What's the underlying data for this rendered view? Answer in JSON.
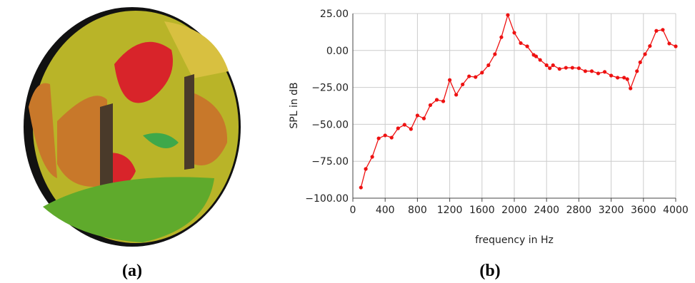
{
  "chart_data": {
    "type": "line",
    "xlabel": "frequency in Hz",
    "ylabel": "SPL in dB",
    "x": [
      100,
      160,
      240,
      320,
      400,
      480,
      560,
      640,
      720,
      800,
      880,
      960,
      1040,
      1120,
      1200,
      1280,
      1360,
      1440,
      1520,
      1600,
      1680,
      1760,
      1840,
      1920,
      2000,
      2080,
      2160,
      2240,
      2270,
      2320,
      2400,
      2440,
      2480,
      2560,
      2640,
      2720,
      2800,
      2880,
      2960,
      3040,
      3120,
      3200,
      3280,
      3360,
      3400,
      3440,
      3520,
      3560,
      3620,
      3680,
      3760,
      3840,
      3920,
      4000
    ],
    "series": [
      {
        "color": "#ee1111",
        "values": [
          -92.8,
          -80.2,
          -72,
          -59.5,
          -57.5,
          -59,
          -52.7,
          -50.3,
          -53.2,
          -44,
          -46,
          -37,
          -33.4,
          -34.4,
          -20,
          -30,
          -23,
          -17.5,
          -18,
          -15,
          -10,
          -2.5,
          9,
          24,
          12,
          5,
          2.8,
          -3,
          -4,
          -6.4,
          -10,
          -12,
          -10,
          -12.5,
          -11.7,
          -11.7,
          -12,
          -14,
          -14,
          -15.5,
          -14.5,
          -17,
          -18.4,
          -18.4,
          -19.4,
          -25.7,
          -14,
          -8,
          -2.5,
          3,
          13.3,
          14,
          4.7,
          2.8
        ]
      }
    ],
    "xlim": [
      0,
      4000
    ],
    "xticks": [
      0,
      400,
      800,
      1200,
      1600,
      2000,
      2400,
      2800,
      3200,
      3600,
      4000
    ],
    "ylim": [
      -100,
      25
    ],
    "yticks": [
      {
        "value": -100,
        "label": "−100.00"
      },
      {
        "value": -75,
        "label": "−75.00"
      },
      {
        "value": -50,
        "label": "−50.00"
      },
      {
        "value": -25,
        "label": "−25.00"
      },
      {
        "value": 0,
        "label": "0.00"
      },
      {
        "value": 25,
        "label": "25.00"
      }
    ],
    "grid": true
  },
  "captions": [
    "(a)",
    "(b)"
  ]
}
